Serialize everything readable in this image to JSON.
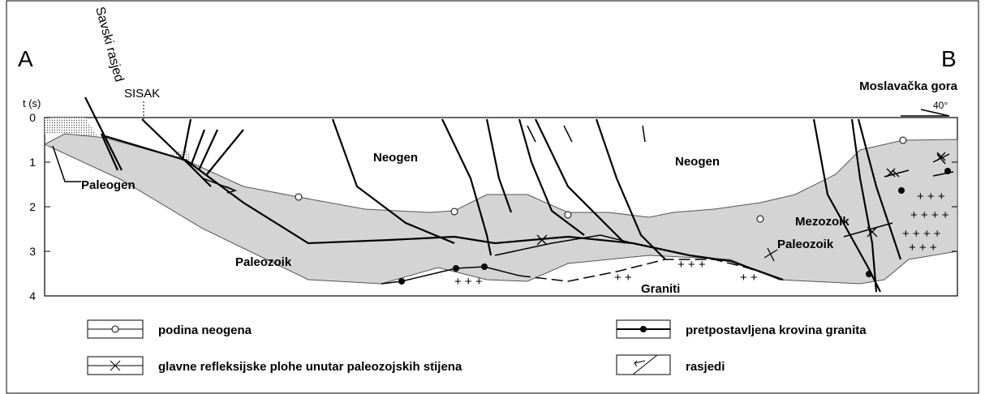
{
  "header": {
    "left_label": "A",
    "right_label": "B",
    "fault_name": "Savski rasjed",
    "town": "SISAK",
    "location": "Moslavačka gora",
    "dip": "40°"
  },
  "axis": {
    "label": "t (s)",
    "ticks": [
      0,
      1,
      2,
      3,
      4
    ]
  },
  "units": [
    "Neogen",
    "Neogen",
    "Paleogen",
    "Paleozoik",
    "Paleozoik",
    "Mezozoik",
    "Graniti"
  ],
  "legend": [
    "podina neogena",
    "pretpostavljena krovina granita",
    "glavne refleksijske plohe unutar paleozojskih stijena",
    "rasjedi"
  ]
}
